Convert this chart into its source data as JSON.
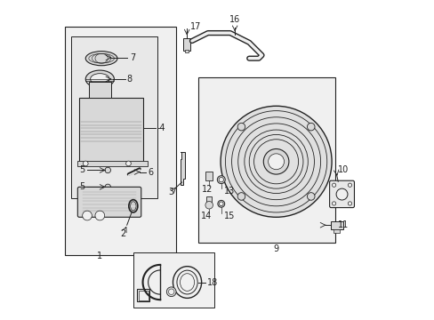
{
  "bg_color": "#ffffff",
  "line_color": "#222222",
  "light_gray": "#cccccc",
  "mid_gray": "#aaaaaa",
  "part_gray": "#888888",
  "fill_light": "#f0f0f0",
  "fill_gray": "#d8d8d8"
}
